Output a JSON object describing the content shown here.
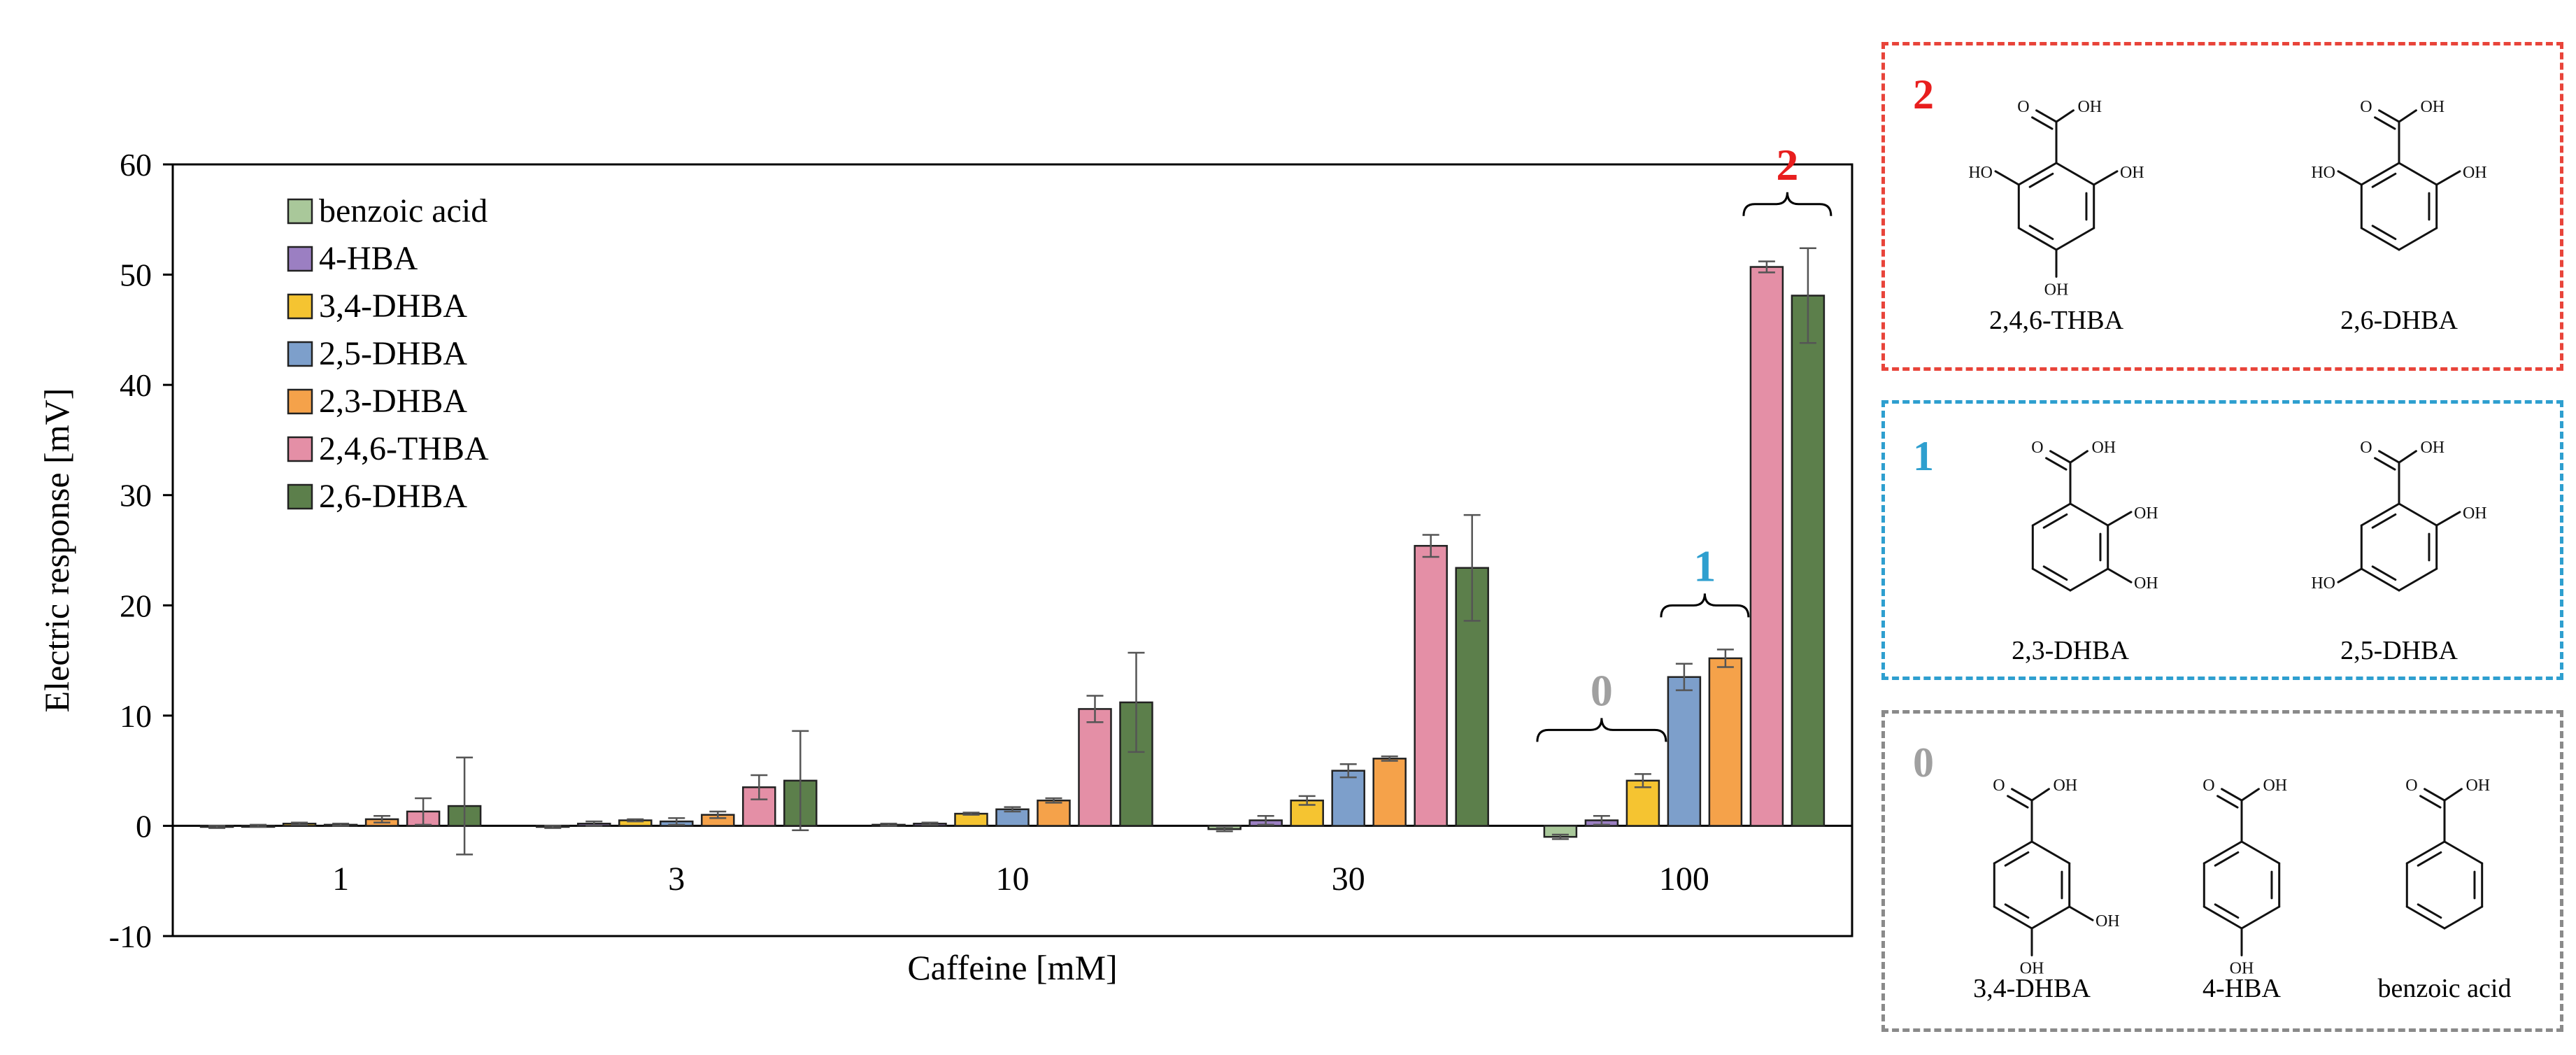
{
  "chart_data": {
    "type": "bar",
    "title": "",
    "xlabel": "Caffeine [mM]",
    "ylabel": "Electric response [mV]",
    "ylim": [
      -10,
      60
    ],
    "yticks": [
      "-10",
      "0",
      "10",
      "20",
      "30",
      "40",
      "50",
      "60"
    ],
    "categories": [
      "1",
      "3",
      "10",
      "30",
      "100"
    ],
    "legend_position": "top-left",
    "series": [
      {
        "name": "benzoic acid",
        "color": "#a9c89a",
        "values": [
          -0.1,
          -0.1,
          0.1,
          -0.3,
          -1.0
        ],
        "errors": [
          0.1,
          0.1,
          0.1,
          0.2,
          0.2
        ]
      },
      {
        "name": "4-HBA",
        "color": "#9b7fc2",
        "values": [
          0.0,
          0.2,
          0.2,
          0.5,
          0.5
        ],
        "errors": [
          0.1,
          0.2,
          0.1,
          0.4,
          0.4
        ]
      },
      {
        "name": "3,4-DHBA",
        "color": "#f5c431",
        "values": [
          0.2,
          0.5,
          1.1,
          2.3,
          4.1
        ],
        "errors": [
          0.1,
          0.1,
          0.1,
          0.4,
          0.6
        ]
      },
      {
        "name": "2,5-DHBA",
        "color": "#7d9fcb",
        "values": [
          0.1,
          0.4,
          1.5,
          5.0,
          13.5
        ],
        "errors": [
          0.1,
          0.3,
          0.2,
          0.6,
          1.2
        ]
      },
      {
        "name": "2,3-DHBA",
        "color": "#f5a24a",
        "values": [
          0.6,
          1.0,
          2.3,
          6.1,
          15.2
        ],
        "errors": [
          0.3,
          0.3,
          0.2,
          0.2,
          0.8
        ]
      },
      {
        "name": "2,4,6-THBA",
        "color": "#e48fa6",
        "values": [
          1.3,
          3.5,
          10.6,
          25.4,
          50.7
        ],
        "errors": [
          1.2,
          1.1,
          1.2,
          1.0,
          0.5
        ]
      },
      {
        "name": "2,6-DHBA",
        "color": "#5c7f4b",
        "values": [
          1.8,
          4.1,
          11.2,
          23.4,
          48.1
        ],
        "errors": [
          4.4,
          4.5,
          4.5,
          4.8,
          4.3
        ]
      }
    ],
    "annotations": [
      {
        "text": "0",
        "color": "#a0a0a0",
        "category": "100",
        "series_from": 0,
        "series_to": 2
      },
      {
        "text": "1",
        "color": "#2e9fcf",
        "category": "100",
        "series_from": 3,
        "series_to": 4
      },
      {
        "text": "2",
        "color": "#e81e1e",
        "category": "100",
        "series_from": 5,
        "series_to": 6
      }
    ]
  },
  "panels": {
    "group2": {
      "label": "2",
      "color": "#e81e1e",
      "compounds": [
        "2,4,6-THBA",
        "2,6-DHBA"
      ]
    },
    "group1": {
      "label": "1",
      "color": "#2e9fcf",
      "compounds": [
        "2,3-DHBA",
        "2,5-DHBA"
      ]
    },
    "group0": {
      "label": "0",
      "color": "#a0a0a0",
      "compounds": [
        "3,4-DHBA",
        "4-HBA",
        "benzoic acid"
      ]
    },
    "atom_labels": {
      "oxygen": "O",
      "hydroxyl": "OH",
      "hydroxyl_left": "HO"
    }
  }
}
